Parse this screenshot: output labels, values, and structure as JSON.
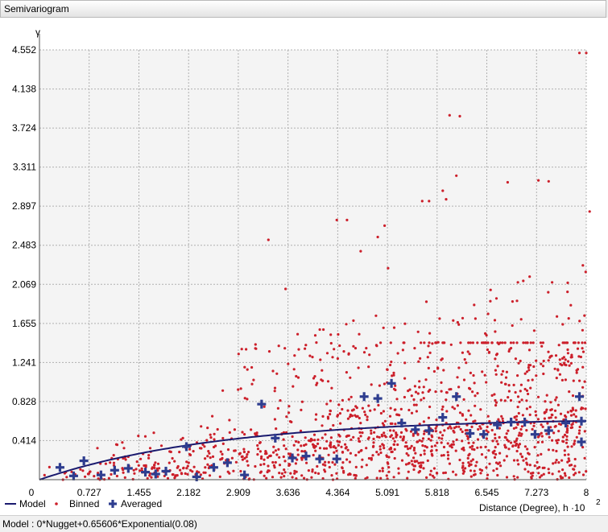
{
  "window": {
    "title": "Semivariogram"
  },
  "status": {
    "model_text": "Model : 0*Nugget+0.65606*Exponential(0.08)"
  },
  "colors": {
    "model": "#1a1a6e",
    "binned": "#cc1f2a",
    "averaged": "#2e3d8f",
    "grid": "#b0b0b0",
    "plot_bg": "#f4f4f4"
  },
  "chart_data": {
    "type": "scatter",
    "ylabel": "γ",
    "xlabel": "Distance (Degree), h ·10",
    "xlabel_exponent": "2",
    "xlim": [
      0,
      8
    ],
    "ylim": [
      0,
      4.552
    ],
    "x_ticks": [
      "0",
      "0.727",
      "1.455",
      "2.182",
      "2.909",
      "3.636",
      "4.364",
      "5.091",
      "5.818",
      "6.545",
      "7.273",
      "8"
    ],
    "y_ticks": [
      "0.414",
      "0.828",
      "1.241",
      "1.655",
      "2.069",
      "2.483",
      "2.897",
      "3.311",
      "3.724",
      "4.138",
      "4.552"
    ],
    "legend": [
      "Model",
      "Binned",
      "Averaged"
    ],
    "legend_position": "bottom-left",
    "grid": true,
    "model": {
      "name": "Model",
      "nugget": 0,
      "sill": 0.65606,
      "range": 8,
      "formula": "exponential"
    },
    "averaged": [
      [
        0.3,
        0.13
      ],
      [
        0.5,
        0.04
      ],
      [
        0.65,
        0.2
      ],
      [
        0.9,
        0.05
      ],
      [
        1.1,
        0.1
      ],
      [
        1.3,
        0.12
      ],
      [
        1.55,
        0.08
      ],
      [
        1.7,
        0.06
      ],
      [
        1.85,
        0.09
      ],
      [
        2.15,
        0.35
      ],
      [
        2.3,
        0.03
      ],
      [
        2.55,
        0.13
      ],
      [
        2.75,
        0.18
      ],
      [
        3.0,
        0.05
      ],
      [
        3.25,
        0.8
      ],
      [
        3.45,
        0.44
      ],
      [
        3.7,
        0.23
      ],
      [
        3.9,
        0.25
      ],
      [
        4.1,
        0.22
      ],
      [
        4.35,
        0.22
      ],
      [
        4.75,
        0.88
      ],
      [
        4.95,
        0.86
      ],
      [
        5.15,
        1.02
      ],
      [
        5.3,
        0.6
      ],
      [
        5.5,
        0.53
      ],
      [
        5.7,
        0.52
      ],
      [
        5.9,
        0.66
      ],
      [
        6.1,
        0.88
      ],
      [
        6.3,
        0.49
      ],
      [
        6.5,
        0.48
      ],
      [
        6.7,
        0.58
      ],
      [
        6.9,
        0.61
      ],
      [
        7.1,
        0.61
      ],
      [
        7.25,
        0.48
      ],
      [
        7.45,
        0.52
      ],
      [
        7.7,
        0.6
      ],
      [
        7.9,
        0.88
      ],
      [
        8.05,
        0.4
      ],
      [
        8.25,
        0.62
      ]
    ],
    "binned_outliers": [
      [
        3.35,
        2.54
      ],
      [
        3.6,
        2.02
      ],
      [
        4.35,
        2.75
      ],
      [
        4.5,
        2.75
      ],
      [
        4.7,
        2.42
      ],
      [
        4.95,
        2.57
      ],
      [
        5.05,
        2.69
      ],
      [
        5.1,
        2.24
      ],
      [
        5.6,
        2.95
      ],
      [
        5.7,
        2.95
      ],
      [
        5.9,
        3.06
      ],
      [
        5.95,
        2.97
      ],
      [
        6.0,
        3.86
      ],
      [
        6.15,
        3.85
      ],
      [
        6.1,
        3.22
      ],
      [
        6.85,
        3.15
      ],
      [
        7.0,
        2.09
      ],
      [
        7.3,
        3.17
      ],
      [
        7.45,
        3.16
      ],
      [
        7.9,
        4.52
      ],
      [
        8.0,
        4.52
      ],
      [
        8.05,
        2.84
      ],
      [
        7.95,
        2.27
      ],
      [
        7.5,
        2.09
      ],
      [
        6.6,
        2.01
      ]
    ],
    "binned_cloud_note": "approximately 1300 semivariance cloud points for point pairs, dense near 0–1.4 and increasing with distance"
  }
}
